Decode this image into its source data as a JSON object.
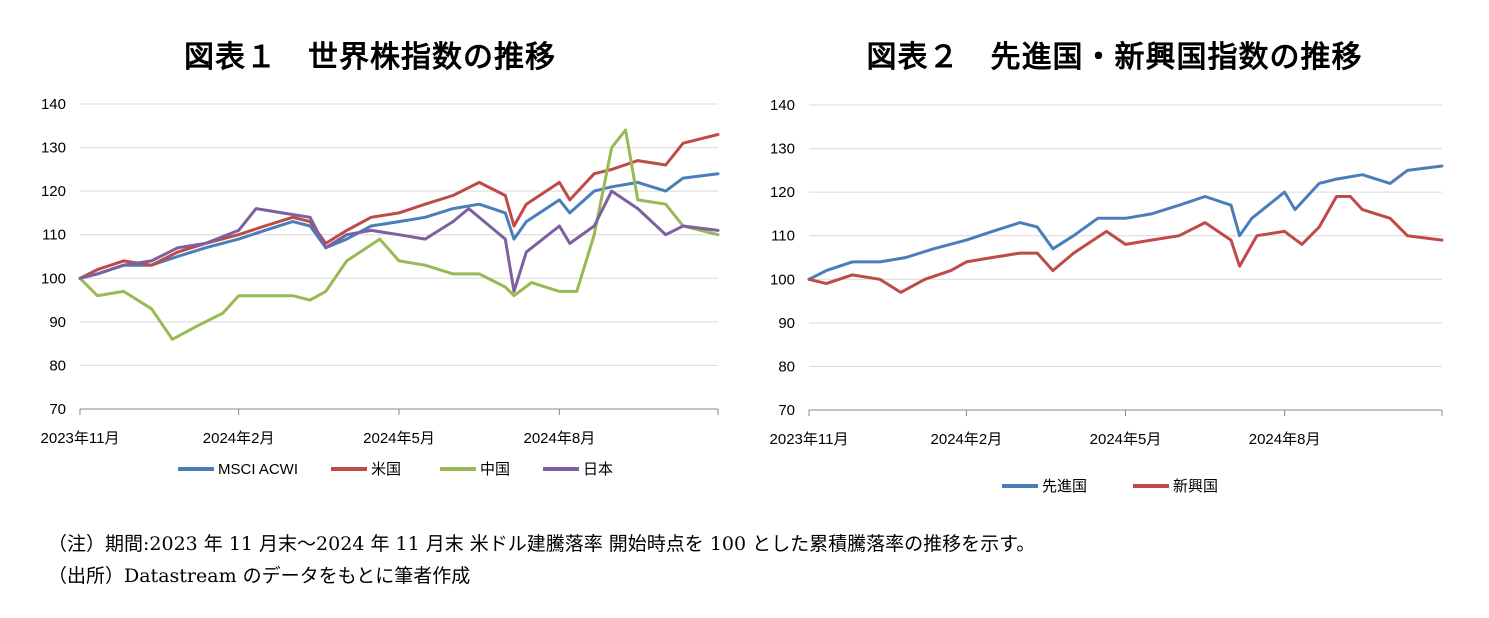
{
  "chart_data": [
    {
      "type": "line",
      "title": "図表１　世界株指数の推移",
      "ylim": [
        70,
        140
      ],
      "yticks": [
        70,
        80,
        90,
        100,
        110,
        120,
        130,
        140
      ],
      "xlim": [
        "2023-11-30",
        "2024-11-30"
      ],
      "xticks": [
        {
          "date": "2023-11-30",
          "label": "2023年11月"
        },
        {
          "date": "2024-02-29",
          "label": "2024年2月"
        },
        {
          "date": "2024-05-31",
          "label": "2024年5月"
        },
        {
          "date": "2024-08-31",
          "label": "2024年8月"
        }
      ],
      "grid": true,
      "legend": "bottom",
      "series": [
        {
          "name": "MSCI ACWI",
          "color": "#4A7EBB",
          "points": [
            [
              "2023-11-30",
              100
            ],
            [
              "2023-12-10",
              101
            ],
            [
              "2023-12-25",
              103
            ],
            [
              "2024-01-10",
              103
            ],
            [
              "2024-01-25",
              105
            ],
            [
              "2024-02-10",
              107
            ],
            [
              "2024-02-29",
              109
            ],
            [
              "2024-03-15",
              111
            ],
            [
              "2024-03-31",
              113
            ],
            [
              "2024-04-10",
              112
            ],
            [
              "2024-04-19",
              107
            ],
            [
              "2024-05-01",
              109
            ],
            [
              "2024-05-15",
              112
            ],
            [
              "2024-05-31",
              113
            ],
            [
              "2024-06-15",
              114
            ],
            [
              "2024-07-01",
              116
            ],
            [
              "2024-07-16",
              117
            ],
            [
              "2024-07-31",
              115
            ],
            [
              "2024-08-05",
              109
            ],
            [
              "2024-08-12",
              113
            ],
            [
              "2024-08-31",
              118
            ],
            [
              "2024-09-06",
              115
            ],
            [
              "2024-09-20",
              120
            ],
            [
              "2024-09-30",
              121
            ],
            [
              "2024-10-15",
              122
            ],
            [
              "2024-10-31",
              120
            ],
            [
              "2024-11-10",
              123
            ],
            [
              "2024-11-30",
              124
            ]
          ]
        },
        {
          "name": "米国",
          "color": "#BE4B48",
          "points": [
            [
              "2023-11-30",
              100
            ],
            [
              "2023-12-10",
              102
            ],
            [
              "2023-12-25",
              104
            ],
            [
              "2024-01-10",
              103
            ],
            [
              "2024-01-25",
              106
            ],
            [
              "2024-02-10",
              108
            ],
            [
              "2024-02-29",
              110
            ],
            [
              "2024-03-15",
              112
            ],
            [
              "2024-03-31",
              114
            ],
            [
              "2024-04-10",
              113
            ],
            [
              "2024-04-19",
              108
            ],
            [
              "2024-05-01",
              111
            ],
            [
              "2024-05-15",
              114
            ],
            [
              "2024-05-31",
              115
            ],
            [
              "2024-06-15",
              117
            ],
            [
              "2024-07-01",
              119
            ],
            [
              "2024-07-16",
              122
            ],
            [
              "2024-07-31",
              119
            ],
            [
              "2024-08-05",
              112
            ],
            [
              "2024-08-12",
              117
            ],
            [
              "2024-08-31",
              122
            ],
            [
              "2024-09-06",
              118
            ],
            [
              "2024-09-20",
              124
            ],
            [
              "2024-09-30",
              125
            ],
            [
              "2024-10-15",
              127
            ],
            [
              "2024-10-31",
              126
            ],
            [
              "2024-11-10",
              131
            ],
            [
              "2024-11-30",
              133
            ]
          ]
        },
        {
          "name": "中国",
          "color": "#98B954",
          "points": [
            [
              "2023-11-30",
              100
            ],
            [
              "2023-12-10",
              96
            ],
            [
              "2023-12-25",
              97
            ],
            [
              "2024-01-10",
              93
            ],
            [
              "2024-01-22",
              86
            ],
            [
              "2024-02-05",
              89
            ],
            [
              "2024-02-20",
              92
            ],
            [
              "2024-02-29",
              96
            ],
            [
              "2024-03-15",
              96
            ],
            [
              "2024-03-31",
              96
            ],
            [
              "2024-04-10",
              95
            ],
            [
              "2024-04-19",
              97
            ],
            [
              "2024-05-01",
              104
            ],
            [
              "2024-05-20",
              109
            ],
            [
              "2024-05-31",
              104
            ],
            [
              "2024-06-15",
              103
            ],
            [
              "2024-07-01",
              101
            ],
            [
              "2024-07-16",
              101
            ],
            [
              "2024-07-31",
              98
            ],
            [
              "2024-08-05",
              96
            ],
            [
              "2024-08-15",
              99
            ],
            [
              "2024-08-31",
              97
            ],
            [
              "2024-09-10",
              97
            ],
            [
              "2024-09-20",
              110
            ],
            [
              "2024-09-30",
              130
            ],
            [
              "2024-10-08",
              134
            ],
            [
              "2024-10-15",
              118
            ],
            [
              "2024-10-31",
              117
            ],
            [
              "2024-11-10",
              112
            ],
            [
              "2024-11-30",
              110
            ]
          ]
        },
        {
          "name": "日本",
          "color": "#7D60A0",
          "points": [
            [
              "2023-11-30",
              100
            ],
            [
              "2023-12-10",
              101
            ],
            [
              "2023-12-25",
              103
            ],
            [
              "2024-01-10",
              104
            ],
            [
              "2024-01-25",
              107
            ],
            [
              "2024-02-10",
              108
            ],
            [
              "2024-02-29",
              111
            ],
            [
              "2024-03-10",
              116
            ],
            [
              "2024-03-25",
              115
            ],
            [
              "2024-04-10",
              114
            ],
            [
              "2024-04-19",
              107
            ],
            [
              "2024-05-01",
              110
            ],
            [
              "2024-05-15",
              111
            ],
            [
              "2024-05-31",
              110
            ],
            [
              "2024-06-15",
              109
            ],
            [
              "2024-07-01",
              113
            ],
            [
              "2024-07-10",
              116
            ],
            [
              "2024-07-31",
              109
            ],
            [
              "2024-08-05",
              97
            ],
            [
              "2024-08-12",
              106
            ],
            [
              "2024-08-31",
              112
            ],
            [
              "2024-09-06",
              108
            ],
            [
              "2024-09-20",
              112
            ],
            [
              "2024-09-30",
              120
            ],
            [
              "2024-10-15",
              116
            ],
            [
              "2024-10-31",
              110
            ],
            [
              "2024-11-10",
              112
            ],
            [
              "2024-11-30",
              111
            ]
          ]
        }
      ]
    },
    {
      "type": "line",
      "title": "図表２　先進国・新興国指数の推移",
      "ylim": [
        70,
        140
      ],
      "yticks": [
        70,
        80,
        90,
        100,
        110,
        120,
        130,
        140
      ],
      "xlim": [
        "2023-11-30",
        "2024-11-30"
      ],
      "xticks": [
        {
          "date": "2023-11-30",
          "label": "2023年11月"
        },
        {
          "date": "2024-02-29",
          "label": "2024年2月"
        },
        {
          "date": "2024-05-31",
          "label": "2024年5月"
        },
        {
          "date": "2024-08-31",
          "label": "2024年8月"
        }
      ],
      "grid": true,
      "legend": "bottom",
      "series": [
        {
          "name": "先進国",
          "color": "#4A7EBB",
          "points": [
            [
              "2023-11-30",
              100
            ],
            [
              "2023-12-10",
              102
            ],
            [
              "2023-12-25",
              104
            ],
            [
              "2024-01-10",
              104
            ],
            [
              "2024-01-25",
              105
            ],
            [
              "2024-02-10",
              107
            ],
            [
              "2024-02-29",
              109
            ],
            [
              "2024-03-15",
              111
            ],
            [
              "2024-03-31",
              113
            ],
            [
              "2024-04-10",
              112
            ],
            [
              "2024-04-19",
              107
            ],
            [
              "2024-05-01",
              110
            ],
            [
              "2024-05-15",
              114
            ],
            [
              "2024-05-31",
              114
            ],
            [
              "2024-06-15",
              115
            ],
            [
              "2024-07-01",
              117
            ],
            [
              "2024-07-16",
              119
            ],
            [
              "2024-07-31",
              117
            ],
            [
              "2024-08-05",
              110
            ],
            [
              "2024-08-12",
              114
            ],
            [
              "2024-08-31",
              120
            ],
            [
              "2024-09-06",
              116
            ],
            [
              "2024-09-20",
              122
            ],
            [
              "2024-09-30",
              123
            ],
            [
              "2024-10-15",
              124
            ],
            [
              "2024-10-31",
              122
            ],
            [
              "2024-11-10",
              125
            ],
            [
              "2024-11-30",
              126
            ]
          ]
        },
        {
          "name": "新興国",
          "color": "#BE4B48",
          "points": [
            [
              "2023-11-30",
              100
            ],
            [
              "2023-12-10",
              99
            ],
            [
              "2023-12-25",
              101
            ],
            [
              "2024-01-10",
              100
            ],
            [
              "2024-01-22",
              97
            ],
            [
              "2024-02-05",
              100
            ],
            [
              "2024-02-20",
              102
            ],
            [
              "2024-02-29",
              104
            ],
            [
              "2024-03-15",
              105
            ],
            [
              "2024-03-31",
              106
            ],
            [
              "2024-04-10",
              106
            ],
            [
              "2024-04-19",
              102
            ],
            [
              "2024-05-01",
              106
            ],
            [
              "2024-05-20",
              111
            ],
            [
              "2024-05-31",
              108
            ],
            [
              "2024-06-15",
              109
            ],
            [
              "2024-07-01",
              110
            ],
            [
              "2024-07-16",
              113
            ],
            [
              "2024-07-31",
              109
            ],
            [
              "2024-08-05",
              103
            ],
            [
              "2024-08-15",
              110
            ],
            [
              "2024-08-31",
              111
            ],
            [
              "2024-09-10",
              108
            ],
            [
              "2024-09-20",
              112
            ],
            [
              "2024-09-30",
              119
            ],
            [
              "2024-10-08",
              119
            ],
            [
              "2024-10-15",
              116
            ],
            [
              "2024-10-31",
              114
            ],
            [
              "2024-11-10",
              110
            ],
            [
              "2024-11-30",
              109
            ]
          ]
        }
      ]
    }
  ],
  "notes": {
    "note": "（注）期間:2023 年 11 月末～2024 年 11 月末 米ドル建騰落率 開始時点を 100 とした累積騰落率の推移を示す。",
    "source": "（出所）Datastream のデータをもとに筆者作成"
  }
}
